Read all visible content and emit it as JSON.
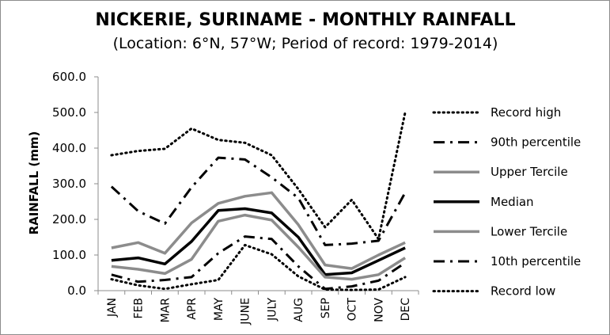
{
  "chart_data": {
    "type": "line",
    "title": "NICKERIE, SURINAME - MONTHLY RAINFALL",
    "subtitle": "(Location: 6°N, 57°W; Period of record: 1979-2014)",
    "ylabel": "RAINFALL (mm)",
    "ylim": [
      0,
      600
    ],
    "yticks": [
      "0.0",
      "100.0",
      "200.0",
      "300.0",
      "400.0",
      "500.0",
      "600.0"
    ],
    "grid": false,
    "legend_position": "right",
    "categories": [
      "JAN",
      "FEB",
      "MAR",
      "APR",
      "MAY",
      "JUNE",
      "JULY",
      "AUG",
      "SEP",
      "OCT",
      "NOV",
      "DEC"
    ],
    "series": [
      {
        "name": "Record high",
        "style": "dotted",
        "color": "#000000",
        "values": [
          380,
          392,
          398,
          455,
          423,
          415,
          380,
          285,
          178,
          255,
          145,
          500
        ]
      },
      {
        "name": "90th percentile",
        "style": "dashdot",
        "color": "#000000",
        "values": [
          292,
          223,
          188,
          290,
          373,
          368,
          318,
          260,
          128,
          132,
          140,
          275
        ]
      },
      {
        "name": "Upper Tercile",
        "style": "solid-gray",
        "color": "#8c8c8c",
        "values": [
          120,
          135,
          105,
          190,
          245,
          265,
          275,
          185,
          72,
          62,
          100,
          135
        ]
      },
      {
        "name": "Median",
        "style": "solid-black",
        "color": "#000000",
        "values": [
          85,
          92,
          75,
          138,
          225,
          230,
          218,
          150,
          45,
          50,
          85,
          120
        ]
      },
      {
        "name": "Lower Tercile",
        "style": "solid-gray",
        "color": "#8c8c8c",
        "values": [
          68,
          60,
          48,
          88,
          195,
          212,
          198,
          122,
          38,
          32,
          45,
          92
        ]
      },
      {
        "name": "10th percentile",
        "style": "dashdot",
        "color": "#000000",
        "values": [
          45,
          25,
          30,
          38,
          105,
          152,
          145,
          68,
          5,
          12,
          28,
          78
        ]
      },
      {
        "name": "Record low",
        "style": "dotted",
        "color": "#000000",
        "values": [
          32,
          15,
          5,
          18,
          30,
          128,
          102,
          40,
          3,
          2,
          3,
          38
        ]
      }
    ]
  }
}
